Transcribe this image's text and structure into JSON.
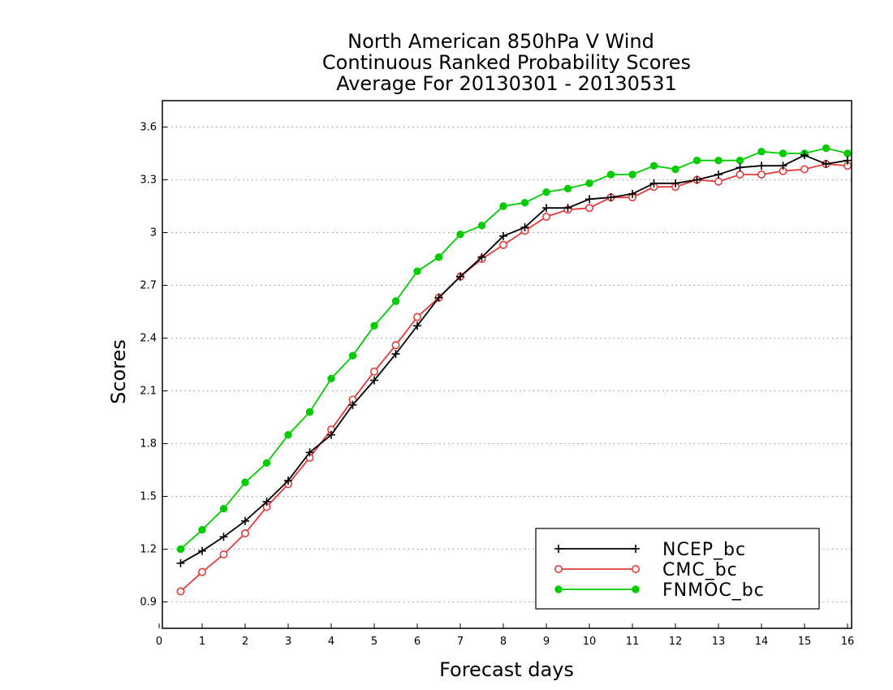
{
  "chart_data": {
    "type": "line",
    "title": [
      "North American 850hPa V Wind",
      "Continuous Ranked Probability Scores",
      "Average For 20130301 - 20130531"
    ],
    "xlabel": "Forecast days",
    "ylabel": "Scores",
    "xlim": [
      0,
      16
    ],
    "ylim": [
      0.75,
      3.75
    ],
    "xticks": [
      0,
      1,
      2,
      3,
      4,
      5,
      6,
      7,
      8,
      9,
      10,
      11,
      12,
      13,
      14,
      15,
      16
    ],
    "yticks": [
      0.9,
      1.2,
      1.5,
      1.8,
      2.1,
      2.4,
      2.7,
      3,
      3.3,
      3.6
    ],
    "ytick_labels": [
      "0.9",
      "1.2",
      "1.5",
      "1.8",
      "2.1",
      "2.4",
      "2.7",
      "3",
      "3.3",
      "3.6"
    ],
    "grid": "horizontal dotted",
    "legend_position": "bottom-right",
    "x": [
      0.5,
      1,
      1.5,
      2,
      2.5,
      3,
      3.5,
      4,
      4.5,
      5,
      5.5,
      6,
      6.5,
      7,
      7.5,
      8,
      8.5,
      9,
      9.5,
      10,
      10.5,
      11,
      11.5,
      12,
      12.5,
      13,
      13.5,
      14,
      14.5,
      15,
      15.5,
      16
    ],
    "series": [
      {
        "name": "NCEP_bc",
        "color": "#000000",
        "marker": "plus",
        "values": [
          1.12,
          1.19,
          1.27,
          1.36,
          1.47,
          1.59,
          1.75,
          1.85,
          2.02,
          2.16,
          2.31,
          2.47,
          2.63,
          2.75,
          2.86,
          2.98,
          3.03,
          3.14,
          3.14,
          3.19,
          3.2,
          3.22,
          3.28,
          3.28,
          3.3,
          3.33,
          3.37,
          3.38,
          3.38,
          3.44,
          3.39,
          3.41
        ]
      },
      {
        "name": "CMC_bc",
        "color": "#e33b3b",
        "marker": "open-circle",
        "values": [
          0.96,
          1.07,
          1.17,
          1.29,
          1.44,
          1.57,
          1.72,
          1.88,
          2.05,
          2.21,
          2.36,
          2.52,
          2.63,
          2.75,
          2.85,
          2.93,
          3.01,
          3.09,
          3.13,
          3.14,
          3.2,
          3.2,
          3.26,
          3.26,
          3.3,
          3.29,
          3.33,
          3.33,
          3.35,
          3.36,
          3.39,
          3.38
        ]
      },
      {
        "name": "FNMOC_bc",
        "color": "#00cc00",
        "marker": "filled-circle",
        "values": [
          1.2,
          1.31,
          1.43,
          1.58,
          1.69,
          1.85,
          1.98,
          2.17,
          2.3,
          2.47,
          2.61,
          2.78,
          2.86,
          2.99,
          3.04,
          3.15,
          3.17,
          3.23,
          3.25,
          3.28,
          3.33,
          3.33,
          3.38,
          3.36,
          3.41,
          3.41,
          3.41,
          3.46,
          3.45,
          3.45,
          3.48,
          3.45
        ]
      }
    ]
  }
}
